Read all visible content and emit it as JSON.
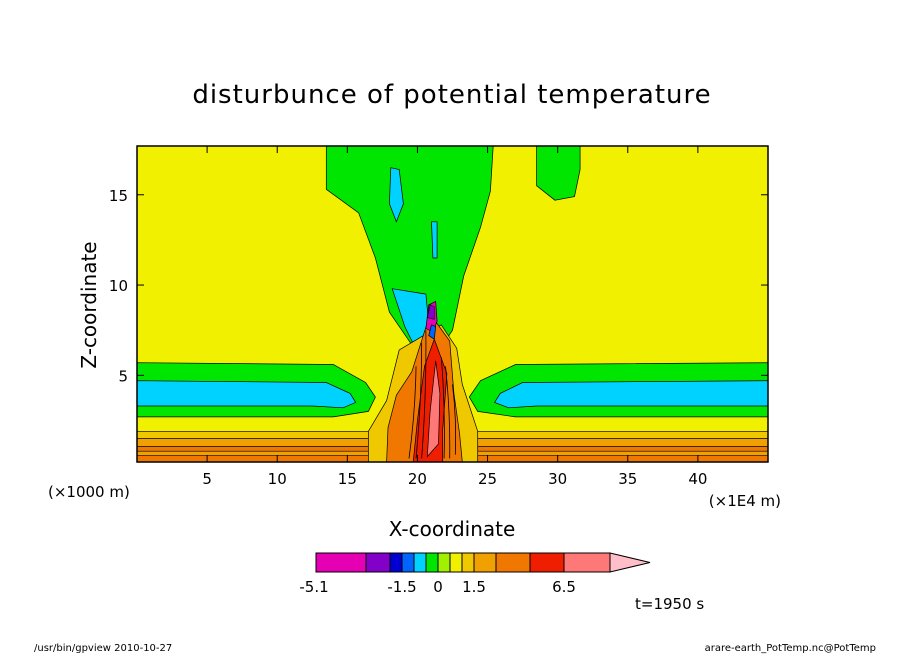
{
  "chart_data": {
    "type": "heatmap",
    "title": "disturbunce of potential temperature",
    "xlabel": "X-coordinate",
    "ylabel": "Z-coordinate",
    "x_unit_label": "(×1000 m)",
    "x_scale_label": "(×1E4 m)",
    "xlim": [
      0,
      45
    ],
    "ylim": [
      0.2,
      17.7
    ],
    "x_ticks": [
      5,
      10,
      15,
      20,
      25,
      30,
      35,
      40
    ],
    "y_ticks": [
      5,
      10,
      15
    ],
    "time_label": "t=1950 s",
    "colorbar": {
      "colors": [
        "#e600b4",
        "#8200c8",
        "#0000d2",
        "#0064ff",
        "#00d2ff",
        "#00e600",
        "#a0f000",
        "#f0f000",
        "#f0c800",
        "#f0a000",
        "#f07800",
        "#f01e00",
        "#ff7878",
        "#ffbec8"
      ],
      "levels": [
        -5.1,
        -3.1,
        -2.1,
        -1.5,
        -1,
        -0.5,
        0,
        0.5,
        1,
        1.5,
        2.5,
        4.5,
        6.5
      ],
      "tick_labels": [
        "-5.1",
        "-1.5",
        "0",
        "1.5",
        "6.5"
      ]
    }
  },
  "footer": {
    "left": "/usr/bin/gpview   2010-10-27",
    "right": "arare-earth_PotTemp.nc@PotTemp"
  }
}
